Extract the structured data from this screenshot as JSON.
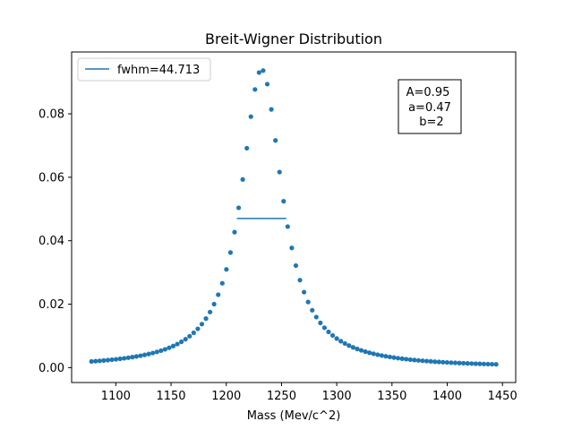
{
  "chart_data": {
    "type": "scatter",
    "title": "Breit-Wigner Distribution",
    "xlabel": "Mass (Mev/c^2)",
    "ylabel": "",
    "xlim": [
      1060,
      1462
    ],
    "ylim": [
      -0.0047,
      0.0995
    ],
    "xticks": [
      1100,
      1150,
      1200,
      1250,
      1300,
      1350,
      1400,
      1450
    ],
    "yticks": [
      0.0,
      0.02,
      0.04,
      0.06,
      0.08
    ],
    "ytick_labels": [
      "0.00",
      "0.02",
      "0.04",
      "0.06",
      "0.08"
    ],
    "grid": false,
    "legend": {
      "placement": "upper-left",
      "entries": [
        {
          "label": "fwhm=44.713"
        }
      ]
    },
    "series": [
      {
        "kind": "points",
        "color": "#1f77b4",
        "x_start": 1078,
        "x_end": 1447,
        "step": 3.7,
        "formula": "A*(a^2/4)/((x-1232)^2 + a^2/4*... ) Breit-Wigner shaped peak",
        "peak_x": 1232,
        "peak_y": 0.094,
        "half_width": 22.356,
        "baseline": 0.0
      },
      {
        "kind": "hline",
        "label": "fwhm=44.713",
        "color": "#1f77b4",
        "y": 0.047,
        "x_from": 1209.6,
        "x_to": 1254.3
      }
    ],
    "annotation": {
      "lines": [
        "A=0.95",
        "a=0.47",
        "b=2"
      ]
    }
  }
}
